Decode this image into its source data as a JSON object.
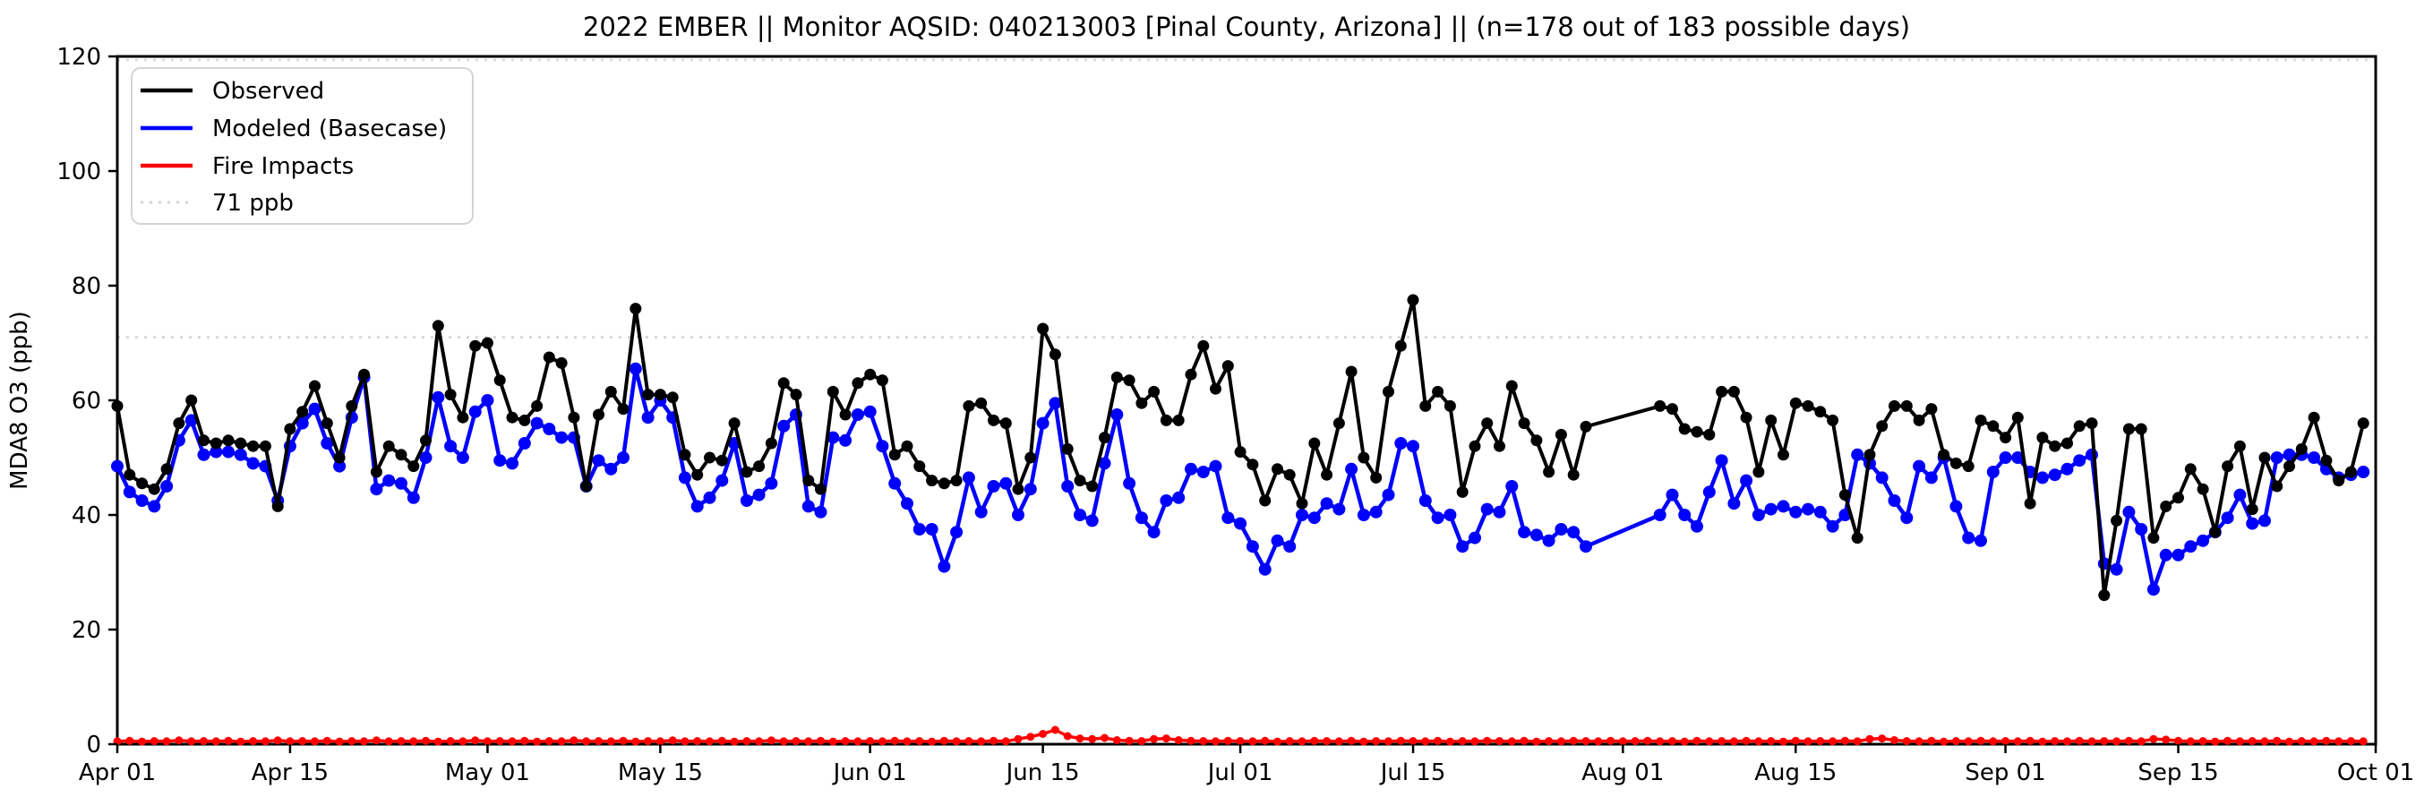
{
  "header": {
    "title": "2022 EMBER || Monitor AQSID: 040213003 [Pinal County, Arizona] || (n=178 out of 183 possible days)"
  },
  "axes": {
    "ylabel": "MDA8 O3 (ppb)",
    "ylim": [
      0,
      120
    ],
    "y_ticks": [
      0,
      20,
      40,
      60,
      80,
      100,
      120
    ],
    "x_ticks": [
      {
        "day": 0,
        "label": "Apr 01"
      },
      {
        "day": 14,
        "label": "Apr 15"
      },
      {
        "day": 30,
        "label": "May 01"
      },
      {
        "day": 44,
        "label": "May 15"
      },
      {
        "day": 61,
        "label": "Jun 01"
      },
      {
        "day": 75,
        "label": "Jun 15"
      },
      {
        "day": 91,
        "label": "Jul 01"
      },
      {
        "day": 105,
        "label": "Jul 15"
      },
      {
        "day": 122,
        "label": "Aug 01"
      },
      {
        "day": 136,
        "label": "Aug 15"
      },
      {
        "day": 153,
        "label": "Sep 01"
      },
      {
        "day": 167,
        "label": "Sep 15"
      },
      {
        "day": 183,
        "label": "Oct 01"
      }
    ]
  },
  "legend": {
    "items": [
      {
        "label": "Observed",
        "color": "#000000",
        "style": "solid"
      },
      {
        "label": "Modeled (Basecase)",
        "color": "#0000ff",
        "style": "solid"
      },
      {
        "label": "Fire Impacts",
        "color": "#ff0000",
        "style": "solid"
      },
      {
        "label": "71 ppb",
        "color": "#d4d4d4",
        "style": "dotted"
      }
    ]
  },
  "chart_data": {
    "type": "line",
    "title": "2022 EMBER || Monitor AQSID: 040213003 [Pinal County, Arizona] || (n=178 out of 183 possible days)",
    "xlabel": "",
    "ylabel": "MDA8 O3 (ppb)",
    "ylim": [
      0,
      120
    ],
    "x_start_date": "2022-04-01",
    "x_end_date": "2022-10-01",
    "n_days": 183,
    "observed_days": 178,
    "missing_dates": [
      "2022-07-30",
      "2022-07-31",
      "2022-08-01",
      "2022-08-02",
      "2022-08-03"
    ],
    "threshold": {
      "label": "71 ppb",
      "value": 71
    },
    "legend_position": "upper-left",
    "grid": false,
    "series": [
      {
        "name": "Observed",
        "color": "#000000",
        "marker": "circle",
        "values": [
          59,
          47,
          45.5,
          44.5,
          48,
          56,
          60,
          53,
          52.5,
          53,
          52.5,
          52,
          52,
          41.5,
          55,
          58,
          62.5,
          56,
          50,
          59,
          64.5,
          47.5,
          52,
          50.5,
          48.5,
          53,
          73,
          61,
          57,
          69.5,
          70,
          63.5,
          57,
          56.5,
          59,
          67.5,
          66.5,
          57,
          45,
          57.5,
          61.5,
          58.5,
          76,
          61,
          61,
          60.5,
          50.5,
          47,
          50,
          49.5,
          56,
          47.5,
          48.5,
          52.5,
          63,
          61,
          46,
          44.5,
          61.5,
          57.5,
          63,
          64.5,
          63.5,
          50.5,
          52,
          48.5,
          46,
          45.5,
          46,
          59,
          59.5,
          56.5,
          56,
          44.5,
          50,
          72.5,
          68,
          51.5,
          46,
          45,
          53.5,
          64,
          63.5,
          59.5,
          61.5,
          56.5,
          56.5,
          64.5,
          69.5,
          62,
          66,
          51,
          48.8,
          42.5,
          48,
          47,
          42,
          52.5,
          47,
          56,
          65,
          50,
          46.5,
          61.5,
          69.5,
          77.5,
          59,
          61.5,
          59,
          44,
          52,
          56,
          52,
          62.5,
          56,
          53,
          47.5,
          54,
          47,
          55.4,
          null,
          null,
          null,
          null,
          null,
          59,
          58.5,
          55,
          54.5,
          54,
          61.5,
          61.5,
          57,
          47.5,
          56.5,
          50.5,
          59.5,
          59,
          58,
          56.5,
          43.5,
          36,
          50.5,
          55.5,
          59,
          59,
          56.5,
          58.5,
          50.5,
          49,
          48.5,
          56.5,
          55.5,
          53.5,
          57,
          42,
          53.5,
          52,
          52.5,
          55.5,
          56,
          26,
          39,
          55,
          55,
          36,
          41.5,
          43,
          48,
          44.5,
          37,
          48.5,
          52,
          41,
          50,
          45,
          48.5,
          51.5,
          57,
          49.5,
          46,
          47.5,
          56
        ]
      },
      {
        "name": "Modeled (Basecase)",
        "color": "#0000ff",
        "marker": "circle",
        "values": [
          48.5,
          44,
          42.5,
          41.5,
          45,
          53,
          56.5,
          50.5,
          51,
          51,
          50.5,
          49,
          48.5,
          42.5,
          52,
          56,
          58.5,
          52.5,
          48.5,
          57,
          64,
          44.5,
          46,
          45.5,
          43,
          50,
          60.5,
          52,
          50,
          58,
          60,
          49.5,
          49,
          52.5,
          56,
          55,
          53.5,
          53.5,
          45,
          49.5,
          48,
          50,
          65.5,
          57,
          60,
          57,
          46.5,
          41.5,
          43,
          46,
          52.5,
          42.5,
          43.5,
          45.5,
          55.5,
          57.5,
          41.5,
          40.5,
          53.5,
          53,
          57.5,
          58,
          52,
          45.5,
          42,
          37.5,
          37.5,
          31,
          37,
          46.5,
          40.5,
          45,
          45.5,
          40,
          44.5,
          56,
          59.5,
          45,
          40,
          39,
          49,
          57.5,
          45.5,
          39.5,
          37,
          42.5,
          43,
          48,
          47.5,
          48.5,
          39.5,
          38.5,
          34.5,
          30.5,
          35.5,
          34.5,
          40,
          39.5,
          42,
          41,
          48,
          40,
          40.5,
          43.5,
          52.5,
          52,
          42.5,
          39.5,
          40,
          34.5,
          36,
          41,
          40.5,
          45,
          37,
          36.5,
          35.5,
          37.5,
          37,
          34.5,
          null,
          null,
          null,
          null,
          null,
          40,
          43.5,
          40,
          38,
          44,
          49.5,
          42,
          46,
          40,
          41,
          41.5,
          40.5,
          41,
          40.5,
          38,
          40,
          50.5,
          49,
          46.5,
          42.5,
          39.5,
          48.5,
          46.5,
          50,
          41.5,
          36,
          35.5,
          47.5,
          50,
          50,
          47.5,
          46.5,
          47,
          48,
          49.5,
          50.5,
          31.5,
          30.5,
          40.5,
          37.5,
          27,
          33,
          33,
          34.5,
          35.5,
          37,
          39.5,
          43.5,
          38.5,
          39,
          50,
          50.5,
          50.5,
          50,
          48,
          46.5,
          47,
          47.5
        ]
      },
      {
        "name": "Fire Impacts",
        "color": "#ff0000",
        "marker": "circle",
        "values": [
          0.5,
          0.6,
          0.45,
          0.55,
          0.5,
          0.65,
          0.5,
          0.55,
          0.5,
          0.6,
          0.45,
          0.55,
          0.5,
          0.65,
          0.5,
          0.55,
          0.5,
          0.6,
          0.45,
          0.55,
          0.5,
          0.65,
          0.5,
          0.55,
          0.5,
          0.6,
          0.45,
          0.55,
          0.5,
          0.65,
          0.5,
          0.55,
          0.5,
          0.6,
          0.45,
          0.55,
          0.5,
          0.65,
          0.5,
          0.55,
          0.5,
          0.6,
          0.45,
          0.55,
          0.5,
          0.65,
          0.5,
          0.55,
          0.5,
          0.6,
          0.45,
          0.55,
          0.5,
          0.65,
          0.5,
          0.55,
          0.5,
          0.6,
          0.45,
          0.55,
          0.5,
          0.55,
          0.5,
          0.6,
          0.5,
          0.55,
          0.45,
          0.6,
          0.5,
          0.55,
          0.5,
          0.6,
          0.5,
          0.9,
          1.3,
          1.8,
          2.5,
          1.4,
          1.0,
          0.9,
          1.1,
          0.7,
          0.6,
          0.55,
          0.9,
          1.0,
          0.7,
          0.6,
          0.55,
          0.5,
          0.6,
          0.55,
          0.5,
          0.6,
          0.45,
          0.55,
          0.5,
          0.6,
          0.55,
          0.5,
          0.6,
          0.45,
          0.55,
          0.5,
          0.6,
          0.55,
          0.5,
          0.6,
          0.45,
          0.55,
          0.5,
          0.6,
          0.55,
          0.5,
          0.6,
          0.45,
          0.55,
          0.5,
          0.6,
          0.55,
          0.5,
          0.6,
          0.5,
          0.55,
          0.6,
          0.5,
          0.55,
          0.45,
          0.6,
          0.5,
          0.55,
          0.5,
          0.6,
          0.5,
          0.55,
          0.45,
          0.6,
          0.5,
          0.55,
          0.5,
          0.6,
          0.5,
          0.9,
          1.0,
          0.7,
          0.55,
          0.5,
          0.6,
          0.45,
          0.55,
          0.5,
          0.6,
          0.5,
          0.55,
          0.5,
          0.6,
          0.45,
          0.55,
          0.5,
          0.6,
          0.5,
          0.55,
          0.5,
          0.6,
          0.5,
          0.9,
          0.8,
          0.6,
          0.5,
          0.55,
          0.45,
          0.6,
          0.5,
          0.55,
          0.5,
          0.6,
          0.45,
          0.55,
          0.5,
          0.6,
          0.5,
          0.55,
          0.5
        ]
      }
    ]
  }
}
